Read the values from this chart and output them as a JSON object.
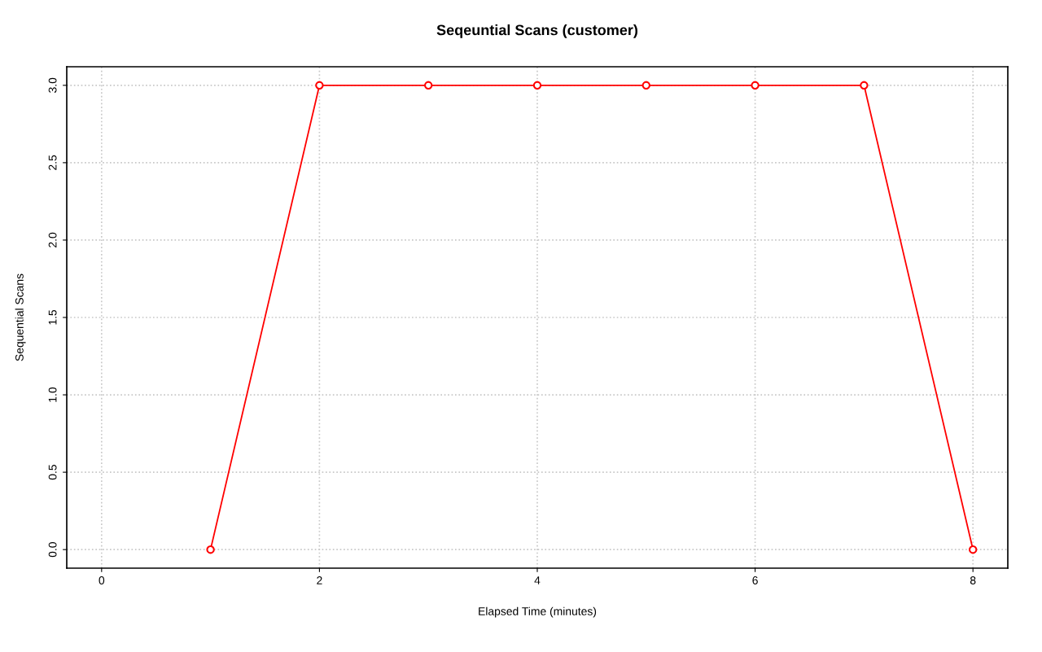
{
  "chart_data": {
    "type": "line",
    "title": "Seqeuntial Scans (customer)",
    "xlabel": "Elapsed Time (minutes)",
    "ylabel": "Sequential Scans",
    "x": [
      1,
      2,
      3,
      4,
      5,
      6,
      7,
      8
    ],
    "series": [
      {
        "color": "#ff0000",
        "values": [
          0,
          3,
          3,
          3,
          3,
          3,
          3,
          0
        ]
      }
    ],
    "xlim": [
      -0.32,
      8.32
    ],
    "xticks": [
      0,
      2,
      4,
      6,
      8
    ],
    "ylim": [
      -0.12,
      3.12
    ],
    "yticks": [
      {
        "value": 0,
        "label": "0.0"
      },
      {
        "value": 0.5,
        "label": "0.5"
      },
      {
        "value": 1,
        "label": "1.0"
      },
      {
        "value": 1.5,
        "label": "1.5"
      },
      {
        "value": 2,
        "label": "2.0"
      },
      {
        "value": 2.5,
        "label": "2.5"
      },
      {
        "value": 3,
        "label": "3.0"
      }
    ],
    "grid": true,
    "marker": "circle",
    "line_style": "solid",
    "legend": false
  }
}
